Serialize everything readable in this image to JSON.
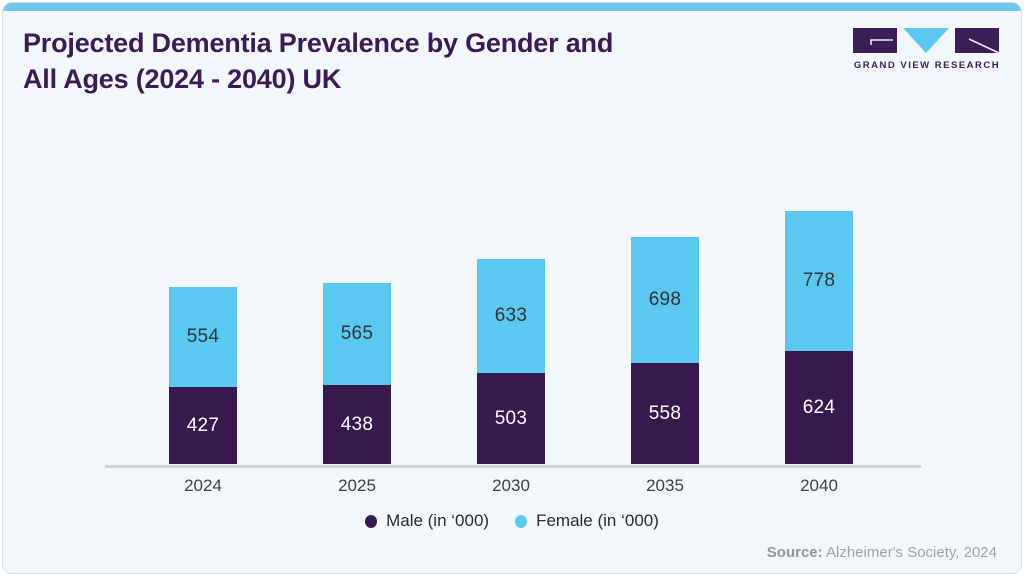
{
  "header": {
    "title_line1": "Projected Dementia Prevalence by Gender and",
    "title_line2": "All Ages (2024 - 2040) UK",
    "logo_text": "GRAND VIEW RESEARCH"
  },
  "chart_data": {
    "type": "bar",
    "stacked": true,
    "title": "Projected Dementia Prevalence by Gender and All Ages (2024 - 2040) UK",
    "categories": [
      "2024",
      "2025",
      "2030",
      "2035",
      "2040"
    ],
    "series": [
      {
        "name": "Male (in ‘000)",
        "color": "#37194d",
        "label_color": "#ffffff",
        "values": [
          427,
          438,
          503,
          558,
          624
        ]
      },
      {
        "name": "Female (in ‘000)",
        "color": "#5bc8f2",
        "label_color": "#2f3238",
        "values": [
          554,
          565,
          633,
          698,
          778
        ]
      }
    ],
    "xlabel": "",
    "ylabel": "",
    "grid": false,
    "data_labels": true,
    "legend_position": "bottom"
  },
  "footer": {
    "source_label": "Source:",
    "source_text": " Alzheimer's Society, 2024"
  },
  "colors": {
    "card_background": "#f2f7fb",
    "top_accent": "#6fc7ee",
    "title": "#3a1b56",
    "male_bar": "#37194d",
    "female_bar": "#5bc8f2",
    "axis_line": "#ced4da"
  }
}
